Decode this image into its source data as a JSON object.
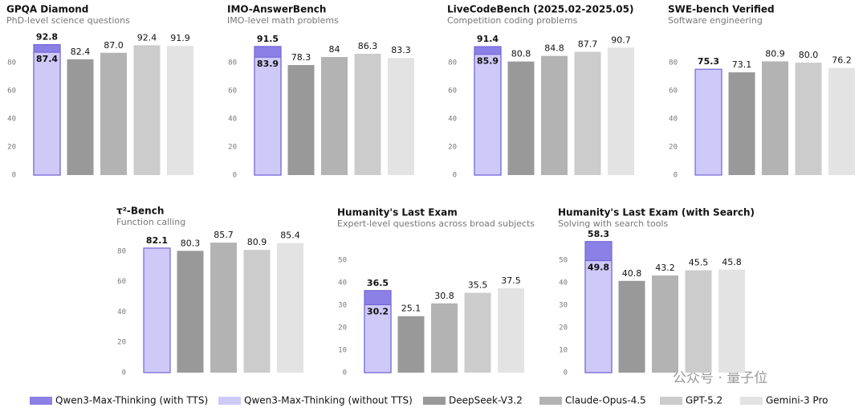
{
  "legend": [
    {
      "name": "Qwen3-Max-Thinking (with TTS)",
      "color": "#8b80e6"
    },
    {
      "name": "Qwen3-Max-Thinking (without TTS)",
      "color": "#cfc9f8"
    },
    {
      "name": "DeepSeek-V3.2",
      "color": "#999999"
    },
    {
      "name": "Claude-Opus-4.5",
      "color": "#b3b3b3"
    },
    {
      "name": "GPT-5.2",
      "color": "#cccccc"
    },
    {
      "name": "Gemini-3 Pro",
      "color": "#e3e3e3"
    }
  ],
  "watermark": "公众号 · 量子位",
  "chart_data": [
    {
      "type": "bar",
      "title": "GPQA Diamond",
      "subtitle": "PhD-level science questions",
      "values": [
        92.8,
        87.4,
        82.4,
        87.0,
        92.4,
        91.9
      ],
      "value_labels": [
        "92.8",
        "87.4",
        "82.4",
        "87.0",
        "92.4",
        "91.9"
      ],
      "ylim": [
        0,
        100
      ],
      "yticks": [
        0,
        20,
        40,
        60,
        80
      ]
    },
    {
      "type": "bar",
      "title": "IMO-AnswerBench",
      "subtitle": "IMO-level math problems",
      "values": [
        91.5,
        83.9,
        78.3,
        84.0,
        86.3,
        83.3
      ],
      "ylim": [
        0,
        100
      ],
      "yticks": [
        0,
        20,
        40,
        60,
        80
      ]
    },
    {
      "type": "bar",
      "title": "LiveCodeBench (2025.02-2025.05)",
      "subtitle": "Competition coding problems",
      "values": [
        91.4,
        85.9,
        80.8,
        84.8,
        87.7,
        90.7
      ],
      "ylim": [
        0,
        100
      ],
      "yticks": [
        0,
        20,
        40,
        60,
        80
      ]
    },
    {
      "type": "bar",
      "title": "SWE-bench Verified",
      "subtitle": "Software engineering",
      "values": [
        null,
        75.3,
        73.1,
        80.9,
        80.0,
        76.2
      ],
      "value_labels": [
        null,
        "75.3",
        "73.1",
        "80.9",
        "80.0",
        "76.2"
      ],
      "ylim": [
        0,
        100
      ],
      "yticks": [
        0,
        20,
        40,
        60,
        80
      ]
    },
    {
      "type": "bar",
      "title": "τ²-Bench",
      "subtitle": "Function calling",
      "values": [
        null,
        82.1,
        80.3,
        85.7,
        80.9,
        85.4
      ],
      "ylim": [
        0,
        90
      ],
      "yticks": [
        0,
        20,
        40,
        60,
        80
      ]
    },
    {
      "type": "bar",
      "title": "Humanity's Last Exam",
      "subtitle": "Expert-level questions across broad subjects",
      "values": [
        36.5,
        30.2,
        25.1,
        30.8,
        35.5,
        37.5
      ],
      "ylim": [
        0,
        60
      ],
      "yticks": [
        0,
        10,
        20,
        30,
        40,
        50
      ]
    },
    {
      "type": "bar",
      "title": "Humanity's Last Exam (with Search)",
      "subtitle": "Solving with search tools",
      "values": [
        58.3,
        49.8,
        40.8,
        43.2,
        45.5,
        45.8
      ],
      "ylim": [
        0,
        60
      ],
      "yticks": [
        0,
        10,
        20,
        30,
        40,
        50
      ]
    }
  ]
}
